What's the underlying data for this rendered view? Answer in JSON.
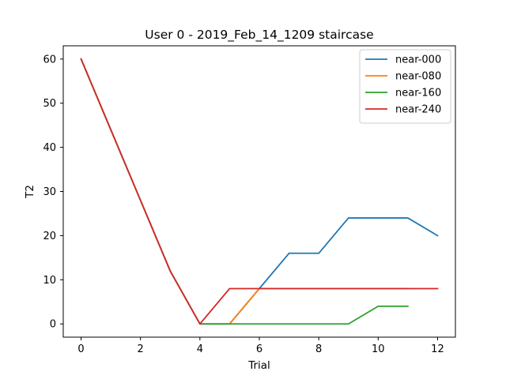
{
  "chart_data": {
    "type": "line",
    "title": "User 0 - 2019_Feb_14_1209 staircase",
    "xlabel": "Trial",
    "ylabel": "T2",
    "xlim": [
      -0.6,
      12.6
    ],
    "ylim": [
      -3,
      63
    ],
    "xticks": [
      0,
      2,
      4,
      6,
      8,
      10,
      12
    ],
    "yticks": [
      0,
      10,
      20,
      30,
      40,
      50,
      60
    ],
    "grid": false,
    "legend_position": "top-right",
    "series": [
      {
        "name": "near-000",
        "color": "#1f77b4",
        "x": [
          0,
          1,
          2,
          3,
          4,
          5,
          6,
          7,
          8,
          9,
          10,
          11,
          12
        ],
        "y": [
          60,
          44,
          28,
          12,
          0,
          0,
          8,
          16,
          16,
          24,
          24,
          24,
          20
        ]
      },
      {
        "name": "near-080",
        "color": "#ff7f0e",
        "x": [
          0,
          1,
          2,
          3,
          4,
          5,
          6,
          7,
          8,
          9,
          10,
          11
        ],
        "y": [
          60,
          44,
          28,
          12,
          0,
          0,
          8,
          8,
          8,
          8,
          8,
          8
        ]
      },
      {
        "name": "near-160",
        "color": "#2ca02c",
        "x": [
          0,
          1,
          2,
          3,
          4,
          5,
          6,
          7,
          8,
          9,
          10,
          11
        ],
        "y": [
          60,
          44,
          28,
          12,
          0,
          0,
          0,
          0,
          0,
          0,
          4,
          4
        ]
      },
      {
        "name": "near-240",
        "color": "#d62728",
        "x": [
          0,
          1,
          2,
          3,
          4,
          5,
          6,
          7,
          8,
          9,
          10,
          11,
          12
        ],
        "y": [
          60,
          44,
          28,
          12,
          0,
          8,
          8,
          8,
          8,
          8,
          8,
          8,
          8
        ]
      }
    ]
  }
}
